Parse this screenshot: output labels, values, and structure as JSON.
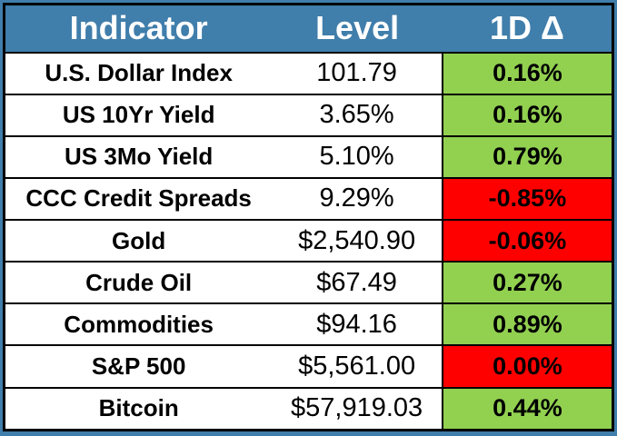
{
  "chart_data": {
    "type": "table",
    "columns": [
      "Indicator",
      "Level",
      "1D Δ"
    ],
    "rows": [
      {
        "indicator": "U.S. Dollar Index",
        "level": "101.79",
        "delta_1d": "0.16%",
        "direction": "up"
      },
      {
        "indicator": "US 10Yr Yield",
        "level": "3.65%",
        "delta_1d": "0.16%",
        "direction": "up"
      },
      {
        "indicator": "US 3Mo Yield",
        "level": "5.10%",
        "delta_1d": "0.79%",
        "direction": "up"
      },
      {
        "indicator": "CCC Credit Spreads",
        "level": "9.29%",
        "delta_1d": "-0.85%",
        "direction": "down"
      },
      {
        "indicator": "Gold",
        "level": "$2,540.90",
        "delta_1d": "-0.06%",
        "direction": "down"
      },
      {
        "indicator": "Crude Oil",
        "level": "$67.49",
        "delta_1d": "0.27%",
        "direction": "up"
      },
      {
        "indicator": "Commodities",
        "level": "$94.16",
        "delta_1d": "0.89%",
        "direction": "up"
      },
      {
        "indicator": "S&P 500",
        "level": "$5,561.00",
        "delta_1d": "0.00%",
        "direction": "down"
      },
      {
        "indicator": "Bitcoin",
        "level": "$57,919.03",
        "delta_1d": "0.44%",
        "direction": "up"
      }
    ]
  },
  "colors": {
    "header_bg": "#407EAB",
    "positive_bg": "#92D050",
    "negative_bg": "#FF0000",
    "border": "#000000",
    "header_text": "#FFFFFF",
    "body_text": "#000000"
  }
}
